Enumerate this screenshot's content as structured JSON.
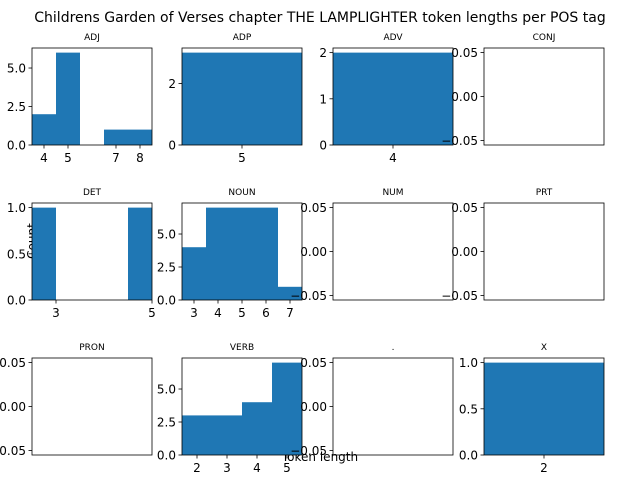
{
  "chart_data": {
    "type": "bar",
    "title": "Childrens Garden of Verses chapter THE LAMPLIGHTER token lengths per POS tag",
    "xlabel": "Token length",
    "ylabel": "Count",
    "bar_color": "#1f77b4",
    "grid": false,
    "panels": [
      {
        "title": "ADJ",
        "bins": [
          [
            3.5,
            4.5,
            2
          ],
          [
            4.5,
            5.5,
            6
          ],
          [
            5.5,
            6.5,
            0
          ],
          [
            6.5,
            7.5,
            1
          ],
          [
            7.5,
            8.5,
            1
          ]
        ],
        "xlim": [
          3.5,
          8.5
        ],
        "ylim": [
          0,
          6.3
        ],
        "xticks": [
          "4",
          "5",
          "7",
          "8"
        ],
        "yticks": [
          "0.0",
          "2.5",
          "5.0"
        ]
      },
      {
        "title": "ADP",
        "bins": [
          [
            4.75,
            5.25,
            3
          ]
        ],
        "xlim": [
          4.75,
          5.25
        ],
        "ylim": [
          0,
          3.15
        ],
        "xticks": [
          "5"
        ],
        "yticks": [
          "0",
          "2"
        ]
      },
      {
        "title": "ADV",
        "bins": [
          [
            3.75,
            4.25,
            2
          ]
        ],
        "xlim": [
          3.75,
          4.25
        ],
        "ylim": [
          0,
          2.1
        ],
        "xticks": [
          "4"
        ],
        "yticks": [
          "0",
          "1",
          "2"
        ]
      },
      {
        "title": "CONJ",
        "bins": [],
        "xlim": [
          0,
          1
        ],
        "ylim": [
          -0.055,
          0.055
        ],
        "xticks": [],
        "yticks": [
          "−0.05",
          "0.00",
          "0.05"
        ]
      },
      {
        "title": "DET",
        "bins": [
          [
            2.5,
            3.0,
            1
          ],
          [
            3.0,
            3.5,
            0
          ],
          [
            3.5,
            4.0,
            0
          ],
          [
            4.0,
            4.5,
            0
          ],
          [
            4.5,
            5.0,
            1
          ]
        ],
        "xlim": [
          2.5,
          5.0
        ],
        "ylim": [
          0,
          1.05
        ],
        "xticks": [
          "3",
          "5"
        ],
        "yticks": [
          "0.0",
          "0.5",
          "1.0"
        ]
      },
      {
        "title": "NOUN",
        "bins": [
          [
            2.5,
            3.5,
            4
          ],
          [
            3.5,
            4.5,
            7
          ],
          [
            4.5,
            5.5,
            7
          ],
          [
            5.5,
            6.5,
            7
          ],
          [
            6.5,
            7.5,
            1
          ]
        ],
        "xlim": [
          2.5,
          7.5
        ],
        "ylim": [
          0,
          7.35
        ],
        "xticks": [
          "3",
          "4",
          "5",
          "6",
          "7"
        ],
        "yticks": [
          "0.0",
          "2.5",
          "5.0"
        ]
      },
      {
        "title": "NUM",
        "bins": [],
        "xlim": [
          0,
          1
        ],
        "ylim": [
          -0.055,
          0.055
        ],
        "xticks": [],
        "yticks": [
          "−0.05",
          "0.00",
          "0.05"
        ]
      },
      {
        "title": "PRT",
        "bins": [],
        "xlim": [
          0,
          1
        ],
        "ylim": [
          -0.055,
          0.055
        ],
        "xticks": [],
        "yticks": [
          "−0.05",
          "0.00",
          "0.05"
        ]
      },
      {
        "title": "PRON",
        "bins": [],
        "xlim": [
          0,
          1
        ],
        "ylim": [
          -0.055,
          0.055
        ],
        "xticks": [],
        "yticks": [
          "−0.05",
          "0.00",
          "0.05"
        ]
      },
      {
        "title": "VERB",
        "bins": [
          [
            1.5,
            2.5,
            3
          ],
          [
            2.5,
            3.5,
            3
          ],
          [
            3.5,
            4.5,
            4
          ],
          [
            4.5,
            5.5,
            7
          ]
        ],
        "xlim": [
          1.5,
          5.5
        ],
        "ylim": [
          0,
          7.35
        ],
        "xticks": [
          "2",
          "3",
          "4",
          "5"
        ],
        "yticks": [
          "0.0",
          "2.5",
          "5.0"
        ]
      },
      {
        "title": ".",
        "bins": [],
        "xlim": [
          0,
          1
        ],
        "ylim": [
          -0.055,
          0.055
        ],
        "xticks": [],
        "yticks": [
          "−0.05",
          "0.00",
          "0.05"
        ]
      },
      {
        "title": "X",
        "bins": [
          [
            1.75,
            2.25,
            1
          ]
        ],
        "xlim": [
          1.75,
          2.25
        ],
        "ylim": [
          0,
          1.05
        ],
        "xticks": [
          "2"
        ],
        "yticks": [
          "0.0",
          "0.5",
          "1.0"
        ]
      }
    ]
  }
}
